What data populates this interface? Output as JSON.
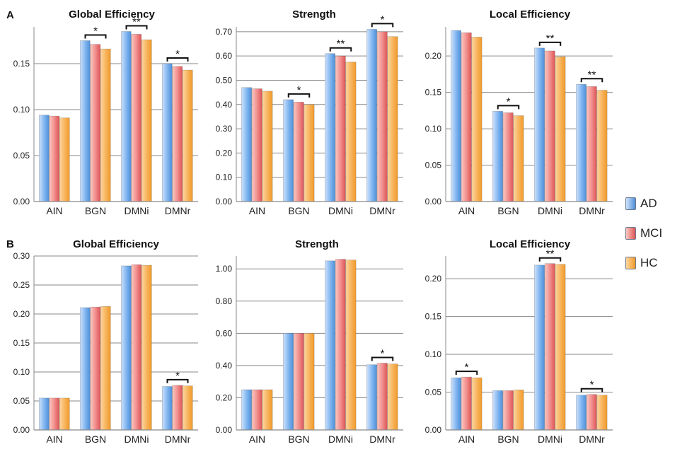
{
  "panel_labels": [
    "A",
    "B"
  ],
  "legend": [
    {
      "name": "AD",
      "color": "#7eb4ef"
    },
    {
      "name": "MCI",
      "color": "#f08a8a"
    },
    {
      "name": "HC",
      "color": "#f7b25a"
    }
  ],
  "colors": {
    "AD": {
      "light": "#cfe2fb",
      "dark": "#4f8fd8"
    },
    "MCI": {
      "light": "#fbc8c0",
      "dark": "#dd5555"
    },
    "HC": {
      "light": "#fdd7a0",
      "dark": "#f09a2a"
    },
    "grid": "#8a8a8a"
  },
  "chart_data": [
    {
      "type": "bar",
      "title": "Global Efficiency",
      "categories": [
        "AIN",
        "BGN",
        "DMNi",
        "DMNr"
      ],
      "series": [
        {
          "name": "AD",
          "values": [
            0.094,
            0.175,
            0.185,
            0.15
          ]
        },
        {
          "name": "MCI",
          "values": [
            0.093,
            0.171,
            0.182,
            0.147
          ]
        },
        {
          "name": "HC",
          "values": [
            0.091,
            0.166,
            0.176,
            0.143
          ]
        }
      ],
      "ylim": [
        0,
        0.19
      ],
      "yticks": [
        0,
        0.05,
        0.1,
        0.15
      ],
      "ytick_labels": [
        "0.00",
        "0.05",
        "0.10",
        "0.15"
      ],
      "significance": [
        {
          "category": "BGN",
          "label": "*"
        },
        {
          "category": "DMNi",
          "label": "**"
        },
        {
          "category": "DMNr",
          "label": "*"
        }
      ]
    },
    {
      "type": "bar",
      "title": "Strength",
      "categories": [
        "AIN",
        "BGN",
        "DMNi",
        "DMNr"
      ],
      "series": [
        {
          "name": "AD",
          "values": [
            0.47,
            0.42,
            0.61,
            0.71
          ]
        },
        {
          "name": "MCI",
          "values": [
            0.465,
            0.41,
            0.6,
            0.7
          ]
        },
        {
          "name": "HC",
          "values": [
            0.455,
            0.4,
            0.575,
            0.68
          ]
        }
      ],
      "ylim": [
        0,
        0.72
      ],
      "yticks": [
        0,
        0.1,
        0.2,
        0.3,
        0.4,
        0.5,
        0.6,
        0.7
      ],
      "ytick_labels": [
        "0.00",
        "0.10",
        "0.20",
        "0.30",
        "0.40",
        "0.50",
        "0.60",
        "0.70"
      ],
      "significance": [
        {
          "category": "BGN",
          "label": "*"
        },
        {
          "category": "DMNi",
          "label": "**"
        },
        {
          "category": "DMNr",
          "label": "*"
        }
      ]
    },
    {
      "type": "bar",
      "title": "Local Efficiency",
      "categories": [
        "AIN",
        "BGN",
        "DMNi",
        "DMNr"
      ],
      "series": [
        {
          "name": "AD",
          "values": [
            0.235,
            0.124,
            0.211,
            0.161
          ]
        },
        {
          "name": "MCI",
          "values": [
            0.232,
            0.122,
            0.207,
            0.158
          ]
        },
        {
          "name": "HC",
          "values": [
            0.226,
            0.118,
            0.199,
            0.153
          ]
        }
      ],
      "ylim": [
        0,
        0.24
      ],
      "yticks": [
        0,
        0.05,
        0.1,
        0.15,
        0.2
      ],
      "ytick_labels": [
        "0.00",
        "0.05",
        "0.10",
        "0.15",
        "0.20"
      ],
      "significance": [
        {
          "category": "BGN",
          "label": "*"
        },
        {
          "category": "DMNi",
          "label": "**"
        },
        {
          "category": "DMNr",
          "label": "**"
        }
      ]
    },
    {
      "type": "bar",
      "title": "Global Efficiency",
      "categories": [
        "AIN",
        "BGN",
        "DMNi",
        "DMNr"
      ],
      "series": [
        {
          "name": "AD",
          "values": [
            0.055,
            0.211,
            0.283,
            0.075
          ]
        },
        {
          "name": "MCI",
          "values": [
            0.055,
            0.212,
            0.285,
            0.077
          ]
        },
        {
          "name": "HC",
          "values": [
            0.055,
            0.213,
            0.284,
            0.076
          ]
        }
      ],
      "ylim": [
        0,
        0.3
      ],
      "yticks": [
        0,
        0.05,
        0.1,
        0.15,
        0.2,
        0.25,
        0.3
      ],
      "ytick_labels": [
        "0.00",
        "0.05",
        "0.10",
        "0.15",
        "0.20",
        "0.25",
        "0.30"
      ],
      "significance": [
        {
          "category": "DMNr",
          "label": "*"
        }
      ]
    },
    {
      "type": "bar",
      "title": "Strength",
      "categories": [
        "AIN",
        "BGN",
        "DMNi",
        "DMNr"
      ],
      "series": [
        {
          "name": "AD",
          "values": [
            0.25,
            0.6,
            1.05,
            0.405
          ]
        },
        {
          "name": "MCI",
          "values": [
            0.25,
            0.6,
            1.06,
            0.415
          ]
        },
        {
          "name": "HC",
          "values": [
            0.25,
            0.6,
            1.055,
            0.41
          ]
        }
      ],
      "ylim": [
        0,
        1.08
      ],
      "yticks": [
        0,
        0.2,
        0.4,
        0.6,
        0.8,
        1.0
      ],
      "ytick_labels": [
        "0.00",
        "0.20",
        "0.40",
        "0.60",
        "0.80",
        "1.00"
      ],
      "significance": [
        {
          "category": "DMNr",
          "label": "*"
        }
      ]
    },
    {
      "type": "bar",
      "title": "Local Efficiency",
      "categories": [
        "AIN",
        "BGN",
        "DMNi",
        "DMNr"
      ],
      "series": [
        {
          "name": "AD",
          "values": [
            0.069,
            0.052,
            0.218,
            0.046
          ]
        },
        {
          "name": "MCI",
          "values": [
            0.07,
            0.052,
            0.22,
            0.047
          ]
        },
        {
          "name": "HC",
          "values": [
            0.069,
            0.053,
            0.219,
            0.046
          ]
        }
      ],
      "ylim": [
        0,
        0.23
      ],
      "yticks": [
        0,
        0.05,
        0.1,
        0.15,
        0.2
      ],
      "ytick_labels": [
        "0.00",
        "0.05",
        "0.10",
        "0.15",
        "0.20"
      ],
      "significance": [
        {
          "category": "AIN",
          "label": "*"
        },
        {
          "category": "DMNi",
          "label": "**"
        },
        {
          "category": "DMNr",
          "label": "*"
        }
      ]
    }
  ]
}
